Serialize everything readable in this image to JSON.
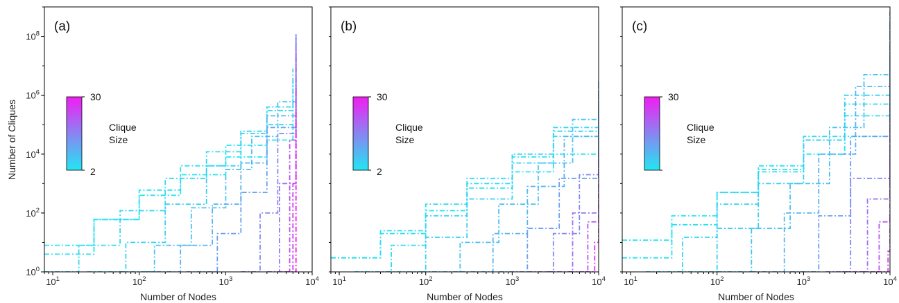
{
  "colors": {
    "low": "#22e6f2",
    "high": "#f21cf2",
    "frame": "#000000"
  },
  "chart_data": [
    {
      "type": "line",
      "panel_label": "(a)",
      "xlabel": "Number of Nodes",
      "ylabel": "Number of Cliques",
      "xscale": "log",
      "yscale": "log",
      "xlim": [
        8,
        10000
      ],
      "ylim": [
        1,
        1000000000
      ],
      "x_ticks": [
        "10^1",
        "10^2",
        "10^3",
        "10^4"
      ],
      "y_ticks": [
        "10^0",
        "10^2",
        "10^4",
        "10^6",
        "10^8"
      ],
      "colorbar": {
        "title": [
          "Clique",
          "Size"
        ],
        "min_label": "2",
        "max_label": "30",
        "min": 2,
        "max": 30
      },
      "line_style": "dash-dot",
      "series": [
        {
          "k": 2,
          "x": [
            8,
            30,
            100,
            300,
            1000,
            3000,
            6000
          ],
          "y": [
            8,
            60,
            400,
            2000,
            8000,
            30000,
            100000
          ]
        },
        {
          "k": 3,
          "x": [
            8,
            30,
            100,
            300,
            1000,
            3000,
            6000
          ],
          "y": [
            4,
            60,
            600,
            4000,
            20000,
            100000,
            500000
          ]
        },
        {
          "k": 4,
          "x": [
            8,
            20,
            60,
            200,
            600,
            1500,
            3000,
            6000
          ],
          "y": [
            1,
            8,
            120,
            1500,
            12000,
            60000,
            300000,
            3000000
          ]
        },
        {
          "k": 5,
          "x": [
            25,
            70,
            200,
            600,
            1500,
            3000,
            6000
          ],
          "y": [
            1,
            10,
            200,
            4000,
            50000,
            400000,
            8000000
          ]
        },
        {
          "k": 7,
          "x": [
            60,
            150,
            400,
            1000,
            2000,
            4000,
            6500
          ],
          "y": [
            1,
            8,
            150,
            3000,
            40000,
            600000,
            20000000
          ]
        },
        {
          "k": 9,
          "x": [
            120,
            300,
            700,
            1500,
            3000,
            6500
          ],
          "y": [
            1,
            8,
            200,
            5000,
            200000,
            60000000
          ]
        },
        {
          "k": 12,
          "x": [
            350,
            800,
            1500,
            3000,
            6500
          ],
          "y": [
            1,
            20,
            500,
            80000,
            100000000
          ]
        },
        {
          "k": 15,
          "x": [
            1500,
            2500,
            4000,
            6500
          ],
          "y": [
            1,
            100,
            50000,
            120000000
          ]
        },
        {
          "k": 18,
          "x": [
            3000,
            4200,
            6500
          ],
          "y": [
            1,
            1000,
            90000000
          ]
        },
        {
          "k": 22,
          "x": [
            4000,
            5500,
            6500
          ],
          "y": [
            1,
            30000,
            30000000
          ]
        },
        {
          "k": 26,
          "x": [
            4800,
            6000,
            6500
          ],
          "y": [
            1,
            1000,
            2000000
          ]
        },
        {
          "k": 30,
          "x": [
            6300,
            6500
          ],
          "y": [
            1,
            300000
          ]
        }
      ]
    },
    {
      "type": "line",
      "panel_label": "(b)",
      "xlabel": "Number of Nodes",
      "ylabel": "",
      "xscale": "log",
      "yscale": "log",
      "xlim": [
        8,
        10000
      ],
      "ylim": [
        1,
        1000000000
      ],
      "x_ticks": [
        "10^1",
        "10^2",
        "10^3",
        "10^4"
      ],
      "y_ticks": [],
      "colorbar": {
        "title": [
          "Clique",
          "Size"
        ],
        "min_label": "2",
        "max_label": "30",
        "min": 2,
        "max": 30
      },
      "line_style": "dash-dot",
      "series": [
        {
          "k": 2,
          "x": [
            8,
            30,
            100,
            300,
            1000,
            3000,
            10000
          ],
          "y": [
            3,
            20,
            120,
            700,
            2500,
            10000,
            40000
          ]
        },
        {
          "k": 3,
          "x": [
            8,
            30,
            100,
            300,
            1000,
            3000,
            10000
          ],
          "y": [
            3,
            25,
            200,
            1500,
            8000,
            40000,
            200000
          ]
        },
        {
          "k": 4,
          "x": [
            15,
            40,
            100,
            300,
            1000,
            3000,
            10000
          ],
          "y": [
            1,
            8,
            80,
            1000,
            10000,
            80000,
            800000
          ]
        },
        {
          "k": 5,
          "x": [
            35,
            100,
            300,
            1000,
            3000,
            10000
          ],
          "y": [
            1,
            15,
            300,
            5000,
            60000,
            1500000
          ]
        },
        {
          "k": 7,
          "x": [
            90,
            250,
            700,
            2000,
            5000,
            10000
          ],
          "y": [
            1,
            10,
            200,
            5000,
            150000,
            3000000
          ]
        },
        {
          "k": 9,
          "x": [
            250,
            600,
            1500,
            4000,
            10000
          ],
          "y": [
            1,
            20,
            800,
            40000,
            3000000
          ]
        },
        {
          "k": 12,
          "x": [
            700,
            1500,
            3500,
            10000
          ],
          "y": [
            1,
            30,
            1500,
            500000
          ]
        },
        {
          "k": 15,
          "x": [
            1500,
            3000,
            6000,
            10000
          ],
          "y": [
            1,
            20,
            2000,
            100000
          ]
        },
        {
          "k": 18,
          "x": [
            2500,
            5000,
            10000
          ],
          "y": [
            1,
            100,
            10000
          ]
        },
        {
          "k": 22,
          "x": [
            4500,
            7500,
            10000
          ],
          "y": [
            1,
            50,
            1000
          ]
        },
        {
          "k": 26,
          "x": [
            7000,
            9000,
            10000
          ],
          "y": [
            1,
            10,
            60
          ]
        }
      ]
    },
    {
      "type": "line",
      "panel_label": "(c)",
      "xlabel": "Number of Nodes",
      "ylabel": "",
      "xscale": "log",
      "yscale": "log",
      "xlim": [
        8,
        10000
      ],
      "ylim": [
        1,
        1000000000
      ],
      "x_ticks": [
        "10^1",
        "10^2",
        "10^3",
        "10^4"
      ],
      "y_ticks": [],
      "colorbar": {
        "title": [
          "Clique",
          "Size"
        ],
        "min_label": "",
        "max_label": "30",
        "min": 2,
        "max": 30
      },
      "line_style": "dash-dot",
      "series": [
        {
          "k": 2,
          "x": [
            8,
            30,
            100,
            300,
            1000,
            3000,
            10000
          ],
          "y": [
            12,
            80,
            500,
            2500,
            10000,
            40000,
            200000
          ]
        },
        {
          "k": 3,
          "x": [
            8,
            30,
            100,
            300,
            1000,
            3000,
            10000
          ],
          "y": [
            3,
            40,
            500,
            4000,
            30000,
            200000,
            1500000
          ]
        },
        {
          "k": 4,
          "x": [
            15,
            40,
            100,
            300,
            1000,
            3000,
            10000
          ],
          "y": [
            1,
            15,
            200,
            3000,
            40000,
            500000,
            8000000
          ]
        },
        {
          "k": 5,
          "x": [
            35,
            100,
            300,
            1000,
            3000,
            10000
          ],
          "y": [
            1,
            30,
            1000,
            30000,
            1000000,
            60000000
          ]
        },
        {
          "k": 7,
          "x": [
            100,
            250,
            700,
            2000,
            5000,
            10000
          ],
          "y": [
            1,
            30,
            1000,
            80000,
            5000000,
            300000000
          ]
        },
        {
          "k": 9,
          "x": [
            250,
            600,
            1500,
            4000,
            10000
          ],
          "y": [
            1,
            100,
            10000,
            2000000,
            700000000
          ]
        },
        {
          "k": 12,
          "x": [
            700,
            1500,
            3500,
            10000
          ],
          "y": [
            1,
            80,
            40000,
            200000000
          ]
        },
        {
          "k": 15,
          "x": [
            1800,
            3500,
            10000
          ],
          "y": [
            1,
            1500,
            20000000
          ]
        },
        {
          "k": 18,
          "x": [
            2800,
            5500,
            10000
          ],
          "y": [
            1,
            300,
            500000
          ]
        },
        {
          "k": 22,
          "x": [
            4500,
            7500,
            10000
          ],
          "y": [
            1,
            50,
            10000
          ]
        },
        {
          "k": 26,
          "x": [
            7000,
            9500,
            10000
          ],
          "y": [
            1,
            5,
            100
          ]
        }
      ]
    }
  ]
}
